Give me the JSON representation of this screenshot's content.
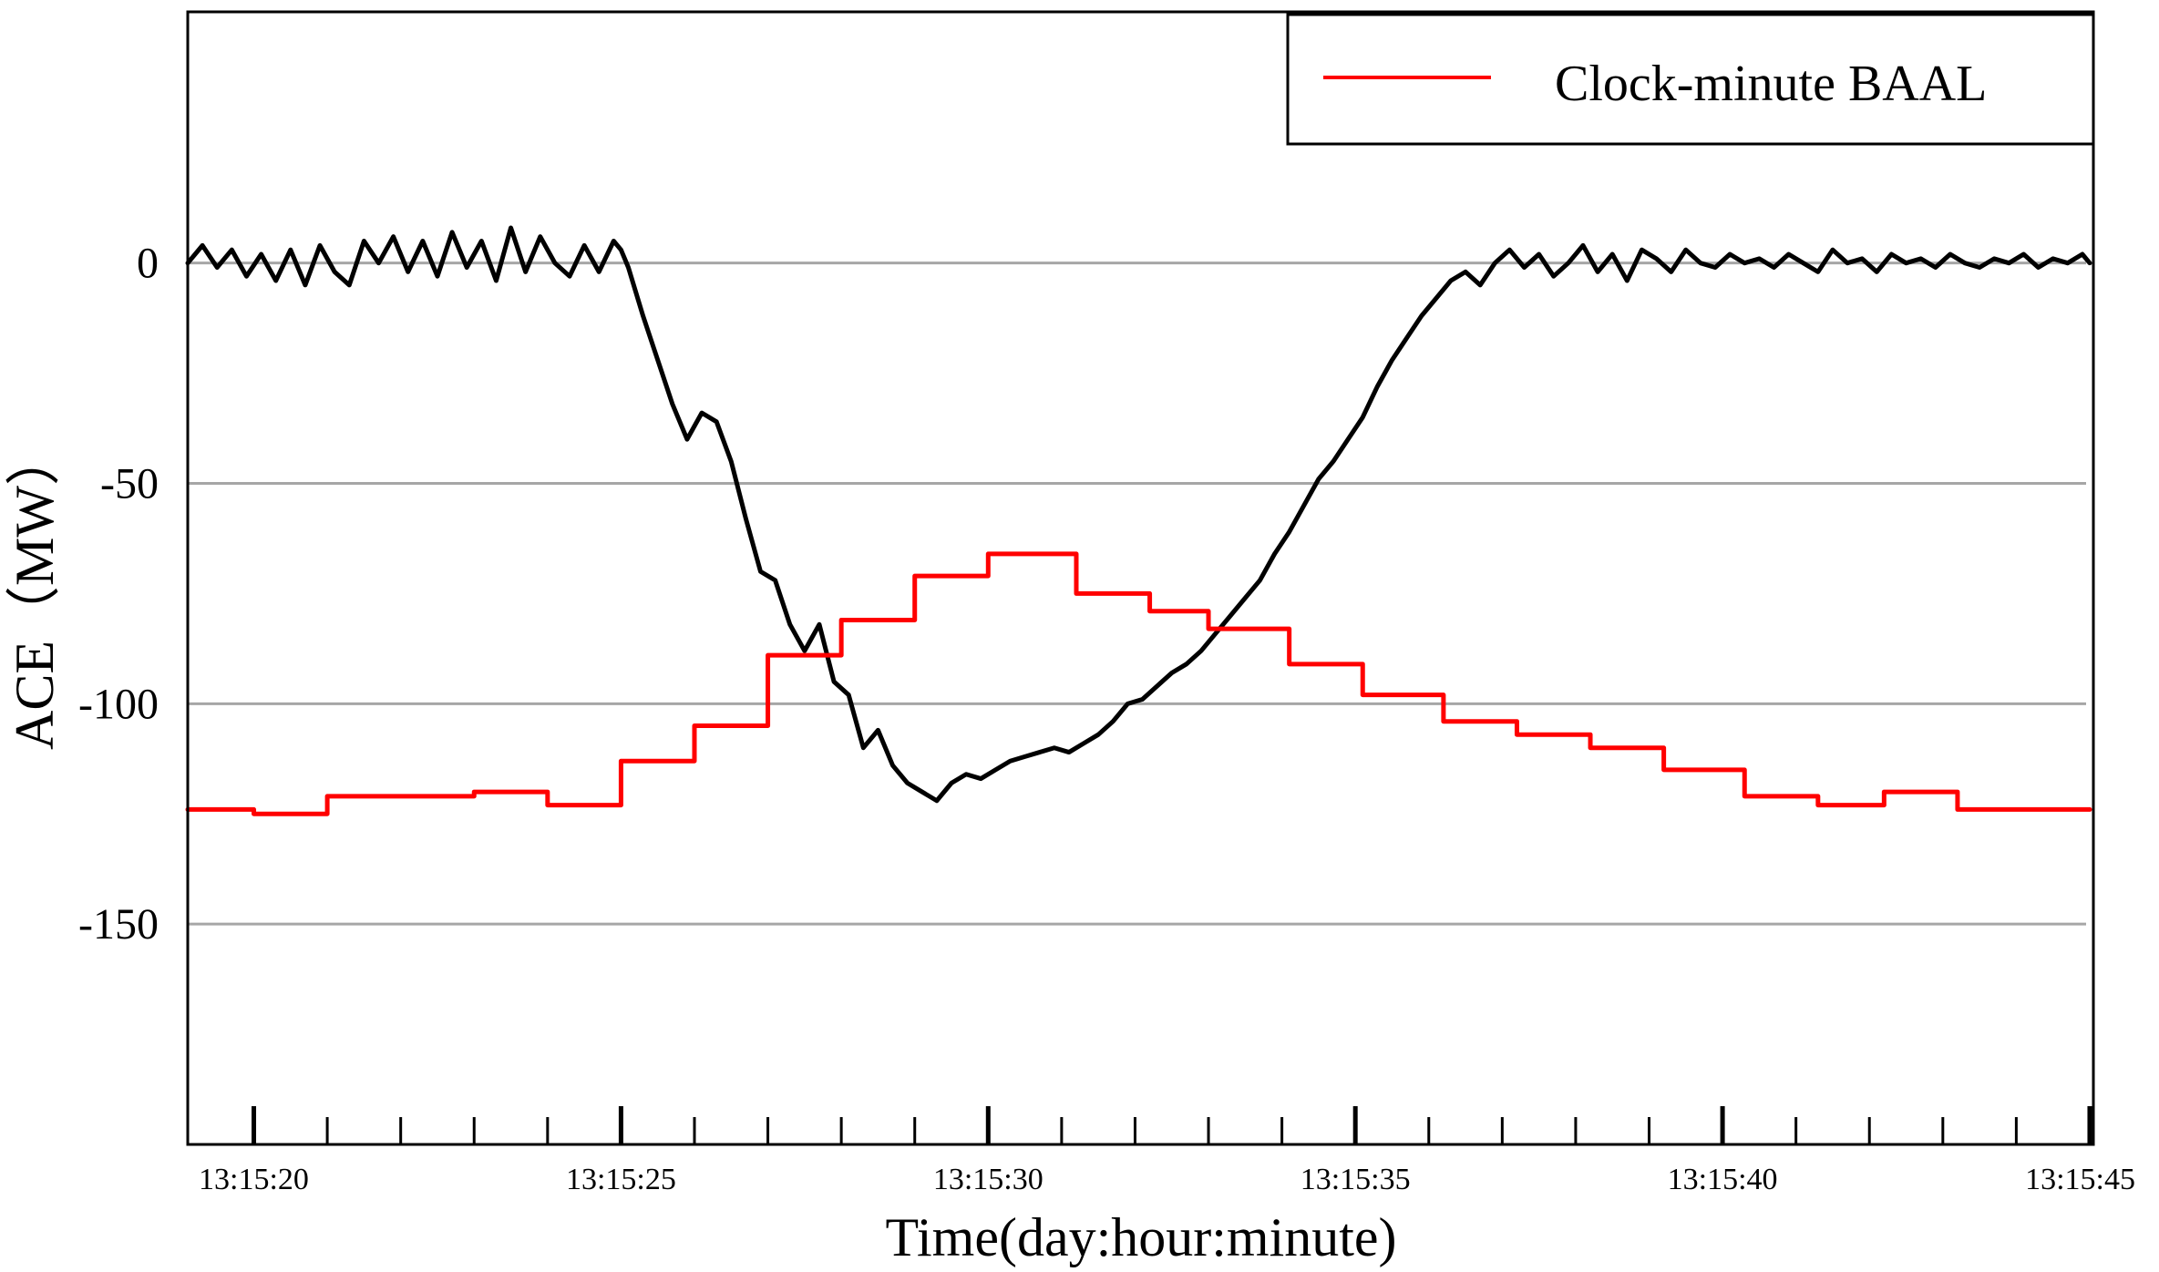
{
  "chart_data": {
    "type": "line",
    "xlabel": "Time(day:hour:minute)",
    "ylabel": "ACE（MW）",
    "xlim": [
      19.1,
      45.05
    ],
    "ylim": [
      -200,
      57
    ],
    "xticks": [
      {
        "x": 20,
        "label": "13:15:20"
      },
      {
        "x": 25,
        "label": "13:15:25"
      },
      {
        "x": 30,
        "label": "13:15:30"
      },
      {
        "x": 35,
        "label": "13:15:35"
      },
      {
        "x": 40,
        "label": "13:15:40"
      },
      {
        "x": 45,
        "label": "13:15:45"
      }
    ],
    "yticks": [
      {
        "y": 0,
        "label": "0"
      },
      {
        "y": -50,
        "label": "-50"
      },
      {
        "y": -100,
        "label": "-100"
      },
      {
        "y": -150,
        "label": "-150"
      }
    ],
    "grid": true,
    "legend_position": "top-right",
    "series": [
      {
        "name": "",
        "color": "#000000",
        "style": "line",
        "x": [
          19.1,
          19.3,
          19.5,
          19.7,
          19.9,
          20.1,
          20.3,
          20.5,
          20.7,
          20.9,
          21.1,
          21.3,
          21.5,
          21.7,
          21.9,
          22.1,
          22.3,
          22.5,
          22.7,
          22.9,
          23.1,
          23.3,
          23.5,
          23.7,
          23.9,
          24.1,
          24.3,
          24.5,
          24.7,
          24.9,
          25.0,
          25.1,
          25.3,
          25.5,
          25.7,
          25.9,
          26.1,
          26.3,
          26.5,
          26.7,
          26.9,
          27.1,
          27.3,
          27.5,
          27.7,
          27.9,
          28.1,
          28.3,
          28.5,
          28.7,
          28.9,
          29.1,
          29.3,
          29.5,
          29.7,
          29.9,
          30.1,
          30.3,
          30.5,
          30.7,
          30.9,
          31.1,
          31.3,
          31.5,
          31.7,
          31.9,
          32.1,
          32.3,
          32.5,
          32.7,
          32.9,
          33.1,
          33.3,
          33.5,
          33.7,
          33.9,
          34.1,
          34.3,
          34.5,
          34.7,
          34.9,
          35.1,
          35.3,
          35.5,
          35.7,
          35.9,
          36.1,
          36.3,
          36.5,
          36.7,
          36.9,
          37.1,
          37.3,
          37.5,
          37.7,
          37.9,
          38.1,
          38.3,
          38.5,
          38.7,
          38.9,
          39.1,
          39.3,
          39.5,
          39.7,
          39.9,
          40.1,
          40.3,
          40.5,
          40.7,
          40.9,
          41.1,
          41.3,
          41.5,
          41.7,
          41.9,
          42.1,
          42.3,
          42.5,
          42.7,
          42.9,
          43.1,
          43.3,
          43.5,
          43.7,
          43.9,
          44.1,
          44.3,
          44.5,
          44.7,
          44.9,
          45.0
        ],
        "y": [
          0,
          4,
          -1,
          3,
          -3,
          2,
          -4,
          3,
          -5,
          4,
          -2,
          -5,
          5,
          0,
          6,
          -2,
          5,
          -3,
          7,
          -1,
          5,
          -4,
          8,
          -2,
          6,
          0,
          -3,
          4,
          -2,
          5,
          3,
          -1,
          -12,
          -22,
          -32,
          -40,
          -34,
          -36,
          -45,
          -58,
          -70,
          -72,
          -82,
          -88,
          -82,
          -95,
          -98,
          -110,
          -106,
          -114,
          -118,
          -120,
          -122,
          -118,
          -116,
          -117,
          -115,
          -113,
          -112,
          -111,
          -110,
          -111,
          -109,
          -107,
          -104,
          -100,
          -99,
          -96,
          -93,
          -91,
          -88,
          -84,
          -80,
          -76,
          -72,
          -66,
          -61,
          -55,
          -49,
          -45,
          -40,
          -35,
          -28,
          -22,
          -17,
          -12,
          -8,
          -4,
          -2,
          -5,
          0,
          3,
          -1,
          2,
          -3,
          0,
          4,
          -2,
          2,
          -4,
          3,
          1,
          -2,
          3,
          0,
          -1,
          2,
          0,
          1,
          -1,
          2,
          0,
          -2,
          3,
          0,
          1,
          -2,
          2,
          0,
          1,
          -1,
          2,
          0,
          -1,
          1,
          0,
          2,
          -1,
          1,
          0,
          2,
          0
        ]
      },
      {
        "name": "Clock-minute BAAL",
        "color": "#ff0000",
        "style": "step",
        "x": [
          19.1,
          20.0,
          21.0,
          22.0,
          23.0,
          24.0,
          25.0,
          26.0,
          27.0,
          28.0,
          29.0,
          30.0,
          31.2,
          32.2,
          33.0,
          34.1,
          35.1,
          36.2,
          37.2,
          38.2,
          39.2,
          40.3,
          41.3,
          42.2,
          43.2,
          44.4,
          45.0
        ],
        "y": [
          -124,
          -125,
          -121,
          -121,
          -120,
          -123,
          -113,
          -105,
          -89,
          -81,
          -71,
          -66,
          -75,
          -79,
          -83,
          -91,
          -98,
          -104,
          -107,
          -110,
          -115,
          -121,
          -123,
          -120,
          -124,
          -124,
          -124
        ]
      }
    ]
  }
}
